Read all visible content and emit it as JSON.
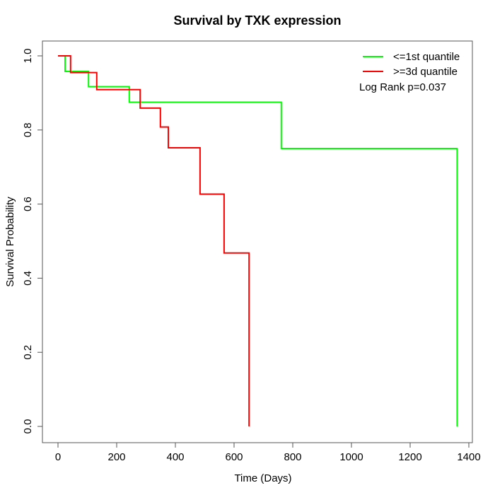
{
  "title": "Survival by TXK expression",
  "axes": {
    "x": {
      "label": "Time (Days)",
      "ticks": [
        {
          "value": 0,
          "label": "0"
        },
        {
          "value": 200,
          "label": "200"
        },
        {
          "value": 400,
          "label": "400"
        },
        {
          "value": 600,
          "label": "600"
        },
        {
          "value": 800,
          "label": "800"
        },
        {
          "value": 1000,
          "label": "1000"
        },
        {
          "value": 1200,
          "label": "1200"
        },
        {
          "value": 1400,
          "label": "1400"
        }
      ]
    },
    "y": {
      "label": "Survival Probability",
      "ticks": [
        {
          "value": 0.0,
          "label": "0.0"
        },
        {
          "value": 0.2,
          "label": "0.2"
        },
        {
          "value": 0.4,
          "label": "0.4"
        },
        {
          "value": 0.6,
          "label": "0.6"
        },
        {
          "value": 0.8,
          "label": "0.8"
        },
        {
          "value": 1.0,
          "label": "1.0"
        }
      ]
    }
  },
  "legend": {
    "items": [
      {
        "label": "<=1st quantile",
        "color": "#00ff00"
      },
      {
        "label": ">=3d quantile",
        "color": "#ff0000"
      }
    ],
    "annotation": "Log Rank p=0.037"
  },
  "chart_data": {
    "type": "line",
    "subtype": "kaplan-meier-step",
    "title": "Survival by TXK expression",
    "xlabel": "Time (Days)",
    "ylabel": "Survival Probability",
    "xlim": [
      0,
      1400
    ],
    "ylim": [
      0.0,
      1.0
    ],
    "grid": false,
    "legend_position": "top-right",
    "annotation": "Log Rank p=0.037",
    "series": [
      {
        "name": "<=1st quantile",
        "color": "#00ff00",
        "points": [
          [
            0,
            1.0
          ],
          [
            24,
            1.0
          ],
          [
            24,
            0.958
          ],
          [
            104,
            0.958
          ],
          [
            104,
            0.917
          ],
          [
            243,
            0.917
          ],
          [
            243,
            0.875
          ],
          [
            761,
            0.875
          ],
          [
            761,
            0.75
          ],
          [
            1360,
            0.75
          ],
          [
            1360,
            0.0
          ]
        ]
      },
      {
        "name": ">=3d quantile",
        "color": "#ff0000",
        "points": [
          [
            0,
            1.0
          ],
          [
            43,
            1.0
          ],
          [
            43,
            0.955
          ],
          [
            132,
            0.955
          ],
          [
            132,
            0.909
          ],
          [
            280,
            0.909
          ],
          [
            280,
            0.859
          ],
          [
            349,
            0.859
          ],
          [
            349,
            0.808
          ],
          [
            376,
            0.808
          ],
          [
            376,
            0.752
          ],
          [
            484,
            0.752
          ],
          [
            484,
            0.627
          ],
          [
            566,
            0.627
          ],
          [
            566,
            0.468
          ],
          [
            651,
            0.468
          ],
          [
            651,
            0.0
          ]
        ]
      }
    ]
  }
}
